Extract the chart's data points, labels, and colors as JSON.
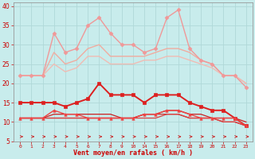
{
  "background_color": "#c8ecec",
  "grid_color": "#b0d8d8",
  "xlabel": "Vent moyen/en rafales ( km/h )",
  "xlabel_color": "#cc0000",
  "tick_color": "#cc0000",
  "arrow_color": "#cc3333",
  "x_labels": [
    "0",
    "1",
    "2",
    "3",
    "4",
    "5",
    "6",
    "7",
    "8",
    "9",
    "10",
    "",
    "",
    "",
    "14",
    "15",
    "16",
    "17",
    "18",
    "19",
    "20",
    "21",
    "22",
    "23"
  ],
  "ylim": [
    5,
    41
  ],
  "yticks": [
    5,
    10,
    15,
    20,
    25,
    30,
    35,
    40
  ],
  "lines": [
    {
      "xi": [
        0,
        1,
        2,
        3,
        4,
        5,
        6,
        7,
        8,
        9,
        10,
        14,
        15,
        16,
        17,
        18,
        19,
        20,
        21,
        22,
        23
      ],
      "y": [
        22,
        22,
        22,
        33,
        28,
        29,
        35,
        37,
        33,
        30,
        30,
        28,
        29,
        37,
        39,
        29,
        26,
        25,
        22,
        22,
        19
      ],
      "color": "#f09898",
      "lw": 1.0,
      "marker": "D",
      "ms": 2.5,
      "zorder": 3
    },
    {
      "xi": [
        0,
        1,
        2,
        3,
        4,
        5,
        6,
        7,
        8,
        9,
        10,
        14,
        15,
        16,
        17,
        18,
        19,
        20,
        21,
        22,
        23
      ],
      "y": [
        22,
        22,
        22,
        28,
        25,
        26,
        29,
        30,
        27,
        27,
        27,
        27,
        28,
        29,
        29,
        28,
        26,
        25,
        22,
        22,
        20
      ],
      "color": "#f0aca0",
      "lw": 1.0,
      "marker": null,
      "ms": 0,
      "zorder": 2
    },
    {
      "xi": [
        0,
        1,
        2,
        3,
        4,
        5,
        6,
        7,
        8,
        9,
        10,
        14,
        15,
        16,
        17,
        18,
        19,
        20,
        21,
        22,
        23
      ],
      "y": [
        22,
        22,
        22,
        25,
        23,
        24,
        27,
        27,
        25,
        25,
        25,
        26,
        26,
        27,
        27,
        26,
        25,
        24,
        22,
        22,
        20
      ],
      "color": "#f0bcb4",
      "lw": 1.0,
      "marker": null,
      "ms": 0,
      "zorder": 2
    },
    {
      "xi": [
        0,
        1,
        2,
        3,
        4,
        5,
        6,
        7,
        8,
        9,
        10,
        14,
        15,
        16,
        17,
        18,
        19,
        20,
        21,
        22,
        23
      ],
      "y": [
        15,
        15,
        15,
        15,
        14,
        15,
        16,
        20,
        17,
        17,
        17,
        15,
        17,
        17,
        17,
        15,
        14,
        13,
        13,
        11,
        9
      ],
      "color": "#dd2020",
      "lw": 1.4,
      "marker": "s",
      "ms": 2.5,
      "zorder": 4
    },
    {
      "xi": [
        0,
        1,
        2,
        3,
        4,
        5,
        6,
        7,
        8,
        9,
        10,
        14,
        15,
        16,
        17,
        18,
        19,
        20,
        21,
        22,
        23
      ],
      "y": [
        11,
        11,
        11,
        13,
        12,
        12,
        11,
        11,
        11,
        11,
        11,
        12,
        12,
        13,
        13,
        12,
        11,
        11,
        11,
        11,
        9
      ],
      "color": "#ee4444",
      "lw": 1.0,
      "marker": "^",
      "ms": 2.5,
      "zorder": 4
    },
    {
      "xi": [
        0,
        1,
        2,
        3,
        4,
        5,
        6,
        7,
        8,
        9,
        10,
        14,
        15,
        16,
        17,
        18,
        19,
        20,
        21,
        22,
        23
      ],
      "y": [
        11,
        11,
        11,
        12,
        12,
        12,
        12,
        12,
        12,
        11,
        11,
        12,
        12,
        13,
        13,
        12,
        12,
        11,
        11,
        11,
        10
      ],
      "color": "#cc2020",
      "lw": 0.9,
      "marker": null,
      "ms": 0,
      "zorder": 2
    },
    {
      "xi": [
        0,
        1,
        2,
        3,
        4,
        5,
        6,
        7,
        8,
        9,
        10,
        14,
        15,
        16,
        17,
        18,
        19,
        20,
        21,
        22,
        23
      ],
      "y": [
        11,
        11,
        11,
        11,
        11,
        11,
        11,
        11,
        11,
        11,
        11,
        12,
        12,
        12,
        12,
        11,
        11,
        11,
        10,
        10,
        9
      ],
      "color": "#cc3333",
      "lw": 0.9,
      "marker": null,
      "ms": 0,
      "zorder": 2
    },
    {
      "xi": [
        0,
        1,
        2,
        3,
        4,
        5,
        6,
        7,
        8,
        9,
        10,
        14,
        15,
        16,
        17,
        18,
        19,
        20,
        21,
        22,
        23
      ],
      "y": [
        11,
        11,
        11,
        11,
        11,
        11,
        11,
        11,
        11,
        11,
        11,
        11,
        11,
        12,
        12,
        11,
        11,
        11,
        10,
        10,
        9
      ],
      "color": "#dd4040",
      "lw": 0.9,
      "marker": null,
      "ms": 0,
      "zorder": 2
    }
  ],
  "hours": [
    0,
    1,
    2,
    3,
    4,
    5,
    6,
    7,
    8,
    9,
    10,
    14,
    15,
    16,
    17,
    18,
    19,
    20,
    21,
    22,
    23
  ],
  "n_ticks": 24
}
